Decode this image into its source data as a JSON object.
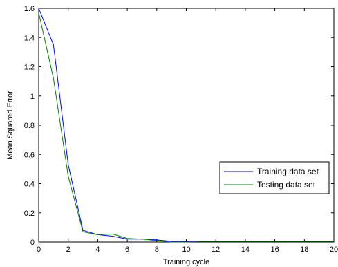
{
  "chart_data": {
    "type": "line",
    "title": "",
    "xlabel": "Training cycle",
    "ylabel": "Mean Squared Error",
    "xlim": [
      0,
      20
    ],
    "ylim": [
      0,
      1.6
    ],
    "xticks": [
      "0",
      "2",
      "4",
      "6",
      "8",
      "10",
      "12",
      "14",
      "16",
      "18",
      "20"
    ],
    "yticks": [
      "0",
      "0.2",
      "0.4",
      "0.6",
      "0.8",
      "1",
      "1.2",
      "1.4",
      "1.6"
    ],
    "grid": false,
    "legend_position": "center-right",
    "series": [
      {
        "name": "Training data set",
        "color": "#0000ff",
        "x": [
          0,
          1,
          2,
          3,
          4,
          5,
          6,
          7,
          8,
          9,
          10,
          11,
          12,
          13,
          14,
          15,
          16,
          17,
          18,
          19,
          20
        ],
        "y": [
          1.6,
          1.35,
          0.53,
          0.08,
          0.05,
          0.04,
          0.02,
          0.02,
          0.015,
          0.005,
          0.005,
          0.005,
          0.005,
          0.005,
          0.005,
          0.005,
          0.005,
          0.005,
          0.005,
          0.005,
          0.005
        ]
      },
      {
        "name": "Testing data set",
        "color": "#008000",
        "x": [
          0,
          1,
          2,
          3,
          4,
          5,
          6,
          7,
          8,
          9,
          10,
          11,
          12,
          13,
          14,
          15,
          16,
          17,
          18,
          19,
          20
        ],
        "y": [
          1.57,
          1.12,
          0.45,
          0.07,
          0.05,
          0.055,
          0.025,
          0.02,
          0.01,
          0.0,
          0.0,
          0.005,
          0.005,
          0.005,
          0.005,
          0.005,
          0.005,
          0.005,
          0.005,
          0.005,
          0.005
        ]
      }
    ]
  }
}
